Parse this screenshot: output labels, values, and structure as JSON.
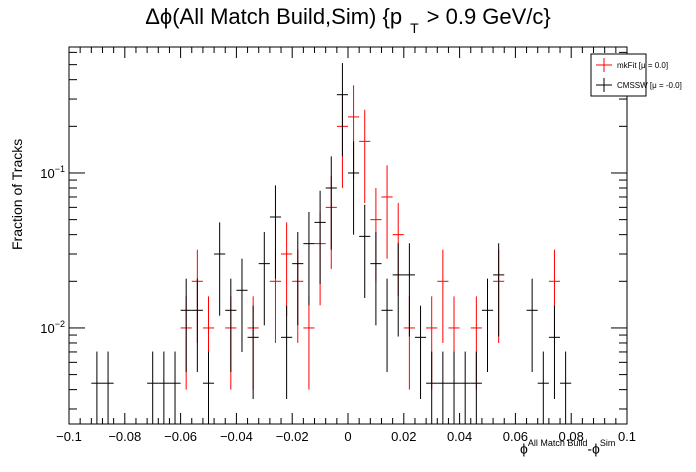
{
  "chart_data": {
    "type": "scatter",
    "title": {
      "main": "Δϕ(All Match Build,Sim) {p",
      "subscript": "T",
      "tail": "> 0.9 GeV/c}"
    },
    "xlabel": {
      "base1": "ϕ",
      "sup1": "All Match Build",
      "mid": "-ϕ",
      "sup2": "Sim"
    },
    "ylabel": "Fraction of Tracks",
    "xlim": [
      -0.1,
      0.1
    ],
    "ylim": [
      0.0024,
      0.65
    ],
    "yscale": "log",
    "grid": false,
    "legend_position": "top-right",
    "x_ticks": [
      "−0.1",
      "−0.08",
      "−0.06",
      "−0.04",
      "−0.02",
      "0",
      "0.02",
      "0.04",
      "0.06",
      "0.08",
      "0.1"
    ],
    "x_tick_values": [
      -0.1,
      -0.08,
      -0.06,
      -0.04,
      -0.02,
      0,
      0.02,
      0.04,
      0.06,
      0.08,
      0.1
    ],
    "y_ticks": [
      {
        "value": 0.01,
        "base": "10",
        "exp": "−2"
      },
      {
        "value": 0.1,
        "base": "10",
        "exp": "−1"
      }
    ],
    "bin_width": 0.004,
    "series": [
      {
        "name": "mkFit",
        "legend_label": "mkFit  [μ =  0.0]",
        "color": "#ff0000",
        "points": [
          {
            "x": -0.058,
            "y": 0.01
          },
          {
            "x": -0.054,
            "y": 0.02
          },
          {
            "x": -0.05,
            "y": 0.01
          },
          {
            "x": -0.042,
            "y": 0.01
          },
          {
            "x": -0.034,
            "y": 0.01
          },
          {
            "x": -0.026,
            "y": 0.02
          },
          {
            "x": -0.022,
            "y": 0.03
          },
          {
            "x": -0.018,
            "y": 0.02
          },
          {
            "x": -0.014,
            "y": 0.01
          },
          {
            "x": -0.01,
            "y": 0.035
          },
          {
            "x": -0.006,
            "y": 0.06
          },
          {
            "x": -0.002,
            "y": 0.2
          },
          {
            "x": 0.002,
            "y": 0.23
          },
          {
            "x": 0.006,
            "y": 0.16
          },
          {
            "x": 0.01,
            "y": 0.05
          },
          {
            "x": 0.014,
            "y": 0.07
          },
          {
            "x": 0.018,
            "y": 0.04
          },
          {
            "x": 0.022,
            "y": 0.01
          },
          {
            "x": 0.03,
            "y": 0.01
          },
          {
            "x": 0.034,
            "y": 0.02
          },
          {
            "x": 0.038,
            "y": 0.01
          },
          {
            "x": 0.046,
            "y": 0.01
          },
          {
            "x": 0.054,
            "y": 0.02
          },
          {
            "x": 0.074,
            "y": 0.02
          }
        ]
      },
      {
        "name": "CMSSW",
        "legend_label": "CMSSW  [μ = -0.0]",
        "color": "#000000",
        "points": [
          {
            "x": -0.09,
            "y": 0.0044
          },
          {
            "x": -0.086,
            "y": 0.0044
          },
          {
            "x": -0.07,
            "y": 0.0044
          },
          {
            "x": -0.066,
            "y": 0.0044
          },
          {
            "x": -0.062,
            "y": 0.0044
          },
          {
            "x": -0.058,
            "y": 0.013
          },
          {
            "x": -0.054,
            "y": 0.013
          },
          {
            "x": -0.05,
            "y": 0.0044
          },
          {
            "x": -0.046,
            "y": 0.03
          },
          {
            "x": -0.042,
            "y": 0.013
          },
          {
            "x": -0.038,
            "y": 0.0175
          },
          {
            "x": -0.034,
            "y": 0.0087
          },
          {
            "x": -0.03,
            "y": 0.026
          },
          {
            "x": -0.026,
            "y": 0.052
          },
          {
            "x": -0.022,
            "y": 0.0087
          },
          {
            "x": -0.018,
            "y": 0.026
          },
          {
            "x": -0.014,
            "y": 0.035
          },
          {
            "x": -0.01,
            "y": 0.048
          },
          {
            "x": -0.006,
            "y": 0.08
          },
          {
            "x": -0.002,
            "y": 0.32
          },
          {
            "x": 0.002,
            "y": 0.1
          },
          {
            "x": 0.006,
            "y": 0.039
          },
          {
            "x": 0.01,
            "y": 0.026
          },
          {
            "x": 0.014,
            "y": 0.013
          },
          {
            "x": 0.018,
            "y": 0.022
          },
          {
            "x": 0.022,
            "y": 0.022
          },
          {
            "x": 0.026,
            "y": 0.0087
          },
          {
            "x": 0.03,
            "y": 0.0044
          },
          {
            "x": 0.034,
            "y": 0.0044
          },
          {
            "x": 0.038,
            "y": 0.0044
          },
          {
            "x": 0.042,
            "y": 0.0044
          },
          {
            "x": 0.046,
            "y": 0.0044
          },
          {
            "x": 0.05,
            "y": 0.013
          },
          {
            "x": 0.054,
            "y": 0.022
          },
          {
            "x": 0.066,
            "y": 0.013
          },
          {
            "x": 0.07,
            "y": 0.0044
          },
          {
            "x": 0.074,
            "y": 0.0087
          },
          {
            "x": 0.078,
            "y": 0.0044
          }
        ]
      }
    ]
  }
}
